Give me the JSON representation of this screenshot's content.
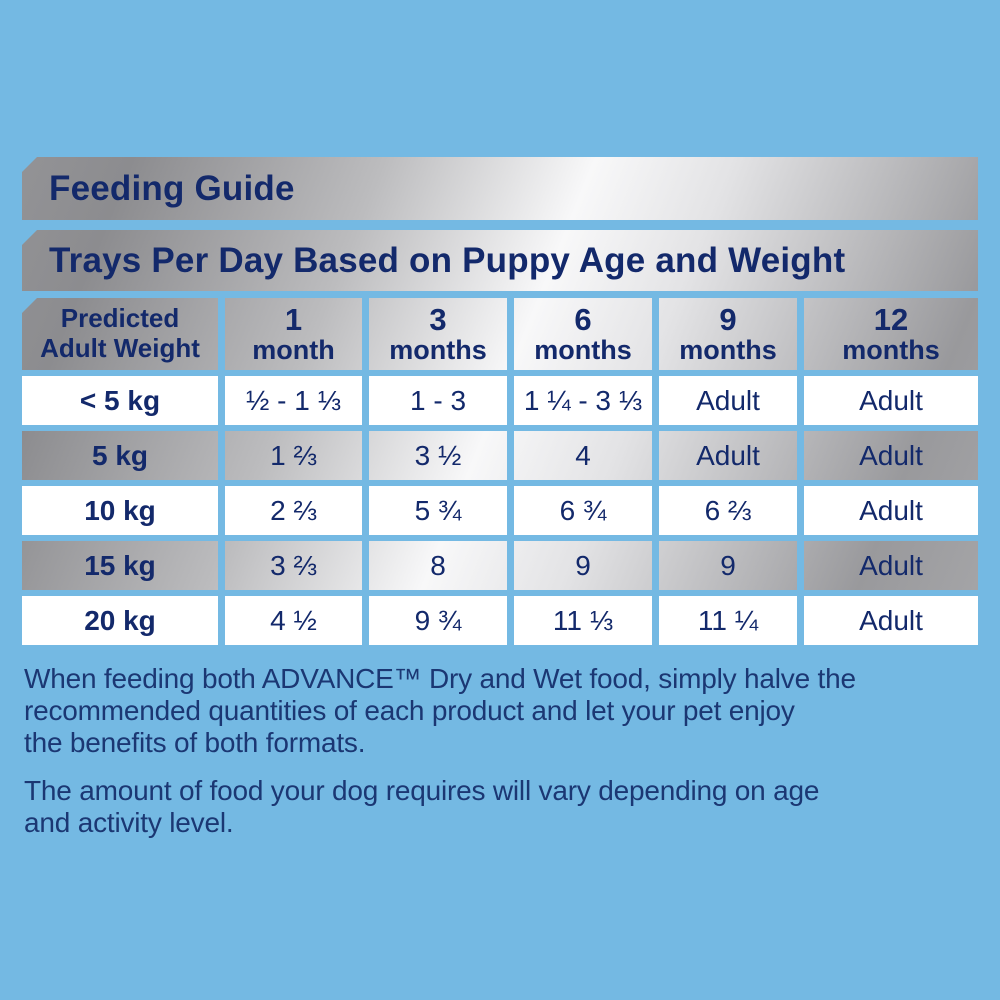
{
  "colors": {
    "background": "#74b9e3",
    "navy_text": "#13296b",
    "silver_dark": "#8c8c8f",
    "silver_light": "#f8f8f9",
    "row_white": "#ffffff"
  },
  "banners": {
    "title": "Feeding Guide",
    "subtitle": "Trays Per Day Based on Puppy Age and Weight"
  },
  "table": {
    "header": [
      {
        "line1": "Predicted",
        "line2": "Adult Weight"
      },
      {
        "line1": "1",
        "line2": "month"
      },
      {
        "line1": "3",
        "line2": "months"
      },
      {
        "line1": "6",
        "line2": "months"
      },
      {
        "line1": "9",
        "line2": "months"
      },
      {
        "line1": "12",
        "line2": "months"
      }
    ],
    "rows": [
      {
        "weight": "< 5 kg",
        "values": [
          "½ - 1 ⅓",
          "1 - 3",
          "1 ¼ - 3 ⅓",
          "Adult",
          "Adult"
        ]
      },
      {
        "weight": "5 kg",
        "values": [
          "1 ⅔",
          "3 ½",
          "4",
          "Adult",
          "Adult"
        ]
      },
      {
        "weight": "10 kg",
        "values": [
          "2 ⅔",
          "5 ¾",
          "6 ¾",
          "6 ⅔",
          "Adult"
        ]
      },
      {
        "weight": "15 kg",
        "values": [
          "3 ⅔",
          "8",
          "9",
          "9",
          "Adult"
        ]
      },
      {
        "weight": "20 kg",
        "values": [
          "4 ½",
          "9 ¾",
          "11 ⅓",
          "11 ¼",
          "Adult"
        ]
      }
    ]
  },
  "notes": [
    "When feeding both ADVANCE™ Dry and Wet food, simply halve the\nrecommended quantities of each product and let your pet enjoy\nthe benefits of both formats.",
    "The amount of food your dog requires will vary depending on age\nand activity level."
  ]
}
